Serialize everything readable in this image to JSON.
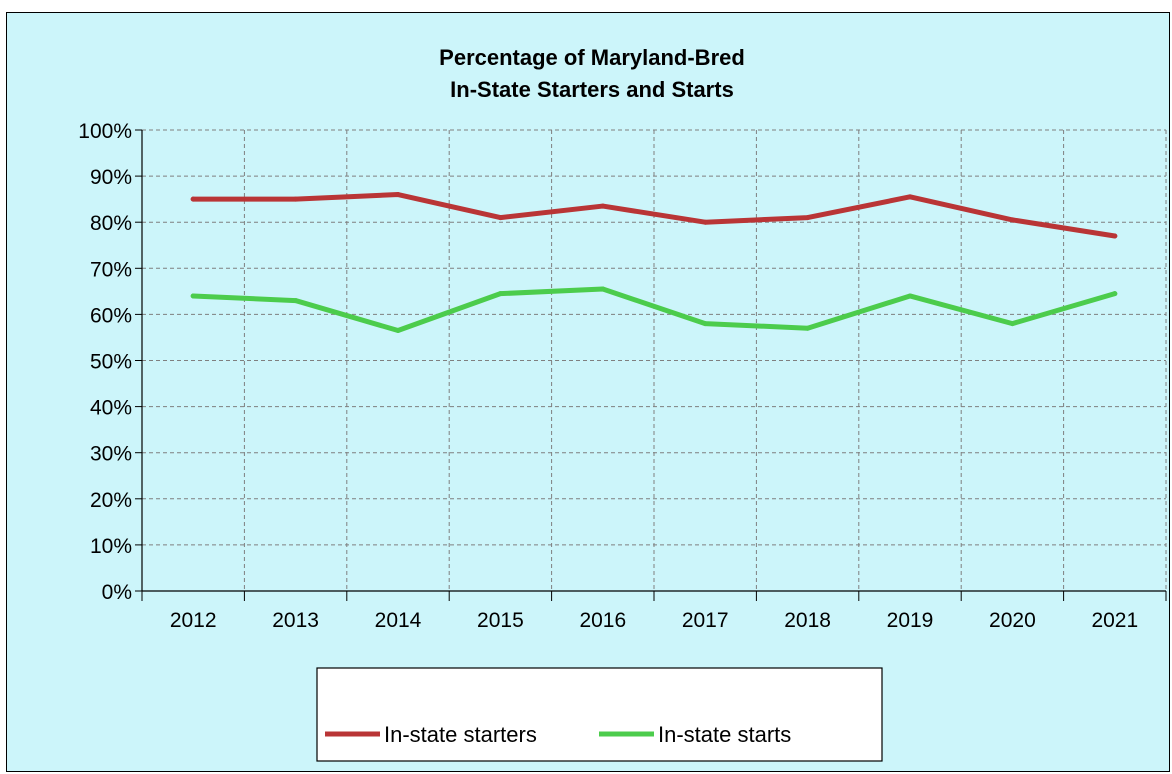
{
  "chart_data": {
    "type": "line",
    "title": [
      "Percentage of Maryland-Bred",
      "In-State Starters and Starts"
    ],
    "categories": [
      "2012",
      "2013",
      "2014",
      "2015",
      "2016",
      "2017",
      "2018",
      "2019",
      "2020",
      "2021"
    ],
    "series": [
      {
        "name": "In-state starters",
        "color": "#b93536",
        "values": [
          85,
          85,
          86,
          81,
          83.5,
          80,
          81,
          85.5,
          80.5,
          77
        ]
      },
      {
        "name": "In-state starts",
        "color": "#4ccc4c",
        "values": [
          64,
          63,
          56.5,
          64.5,
          65.5,
          58,
          57,
          64,
          58,
          64.5
        ]
      }
    ],
    "yticks": [
      "0%",
      "10%",
      "20%",
      "30%",
      "40%",
      "50%",
      "60%",
      "70%",
      "80%",
      "90%",
      "100%"
    ],
    "ylim": [
      0,
      100
    ],
    "grid": true,
    "legend_position": "bottom",
    "colors": {
      "background": "#ccf5fa",
      "grid": "#7f7f7f"
    }
  }
}
